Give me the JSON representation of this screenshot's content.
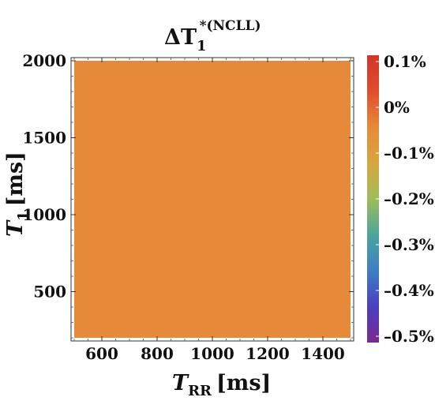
{
  "chart_data": {
    "type": "heatmap",
    "title": {
      "base": "ΔT",
      "subscript": "1",
      "superscript": "*(NCLL)"
    },
    "xlabel": {
      "base": "T",
      "subscript": "RR",
      "unit": "[ms]"
    },
    "ylabel": {
      "base": "T",
      "subscript": "1",
      "unit": "[ms]"
    },
    "xlim": [
      500,
      1500
    ],
    "ylim": [
      200,
      2000
    ],
    "x_ticks": [
      "600",
      "800",
      "1000",
      "1200",
      "1400"
    ],
    "x_tick_values": [
      600,
      800,
      1000,
      1200,
      1400
    ],
    "y_ticks": [
      "500",
      "1000",
      "1500",
      "2000"
    ],
    "y_tick_values": [
      500,
      1000,
      1500,
      2000
    ],
    "value": 0,
    "value_unit": "%",
    "fill_color": "#e68a3a",
    "colorbar": {
      "min": -0.5,
      "max": 0.1,
      "labels": [
        "0.1%",
        "0%",
        "–0.1%",
        "–0.2%",
        "–0.3%",
        "–0.4%",
        "–0.5%"
      ],
      "label_values": [
        0.1,
        0.0,
        -0.1,
        -0.2,
        -0.3,
        -0.4,
        -0.5
      ],
      "colors": [
        "#7a2a8c",
        "#4a3fc0",
        "#3d7fc4",
        "#4aa59c",
        "#9fbd5a",
        "#d8a63f",
        "#e68a3a",
        "#e34b2c",
        "#d3342a"
      ]
    }
  }
}
